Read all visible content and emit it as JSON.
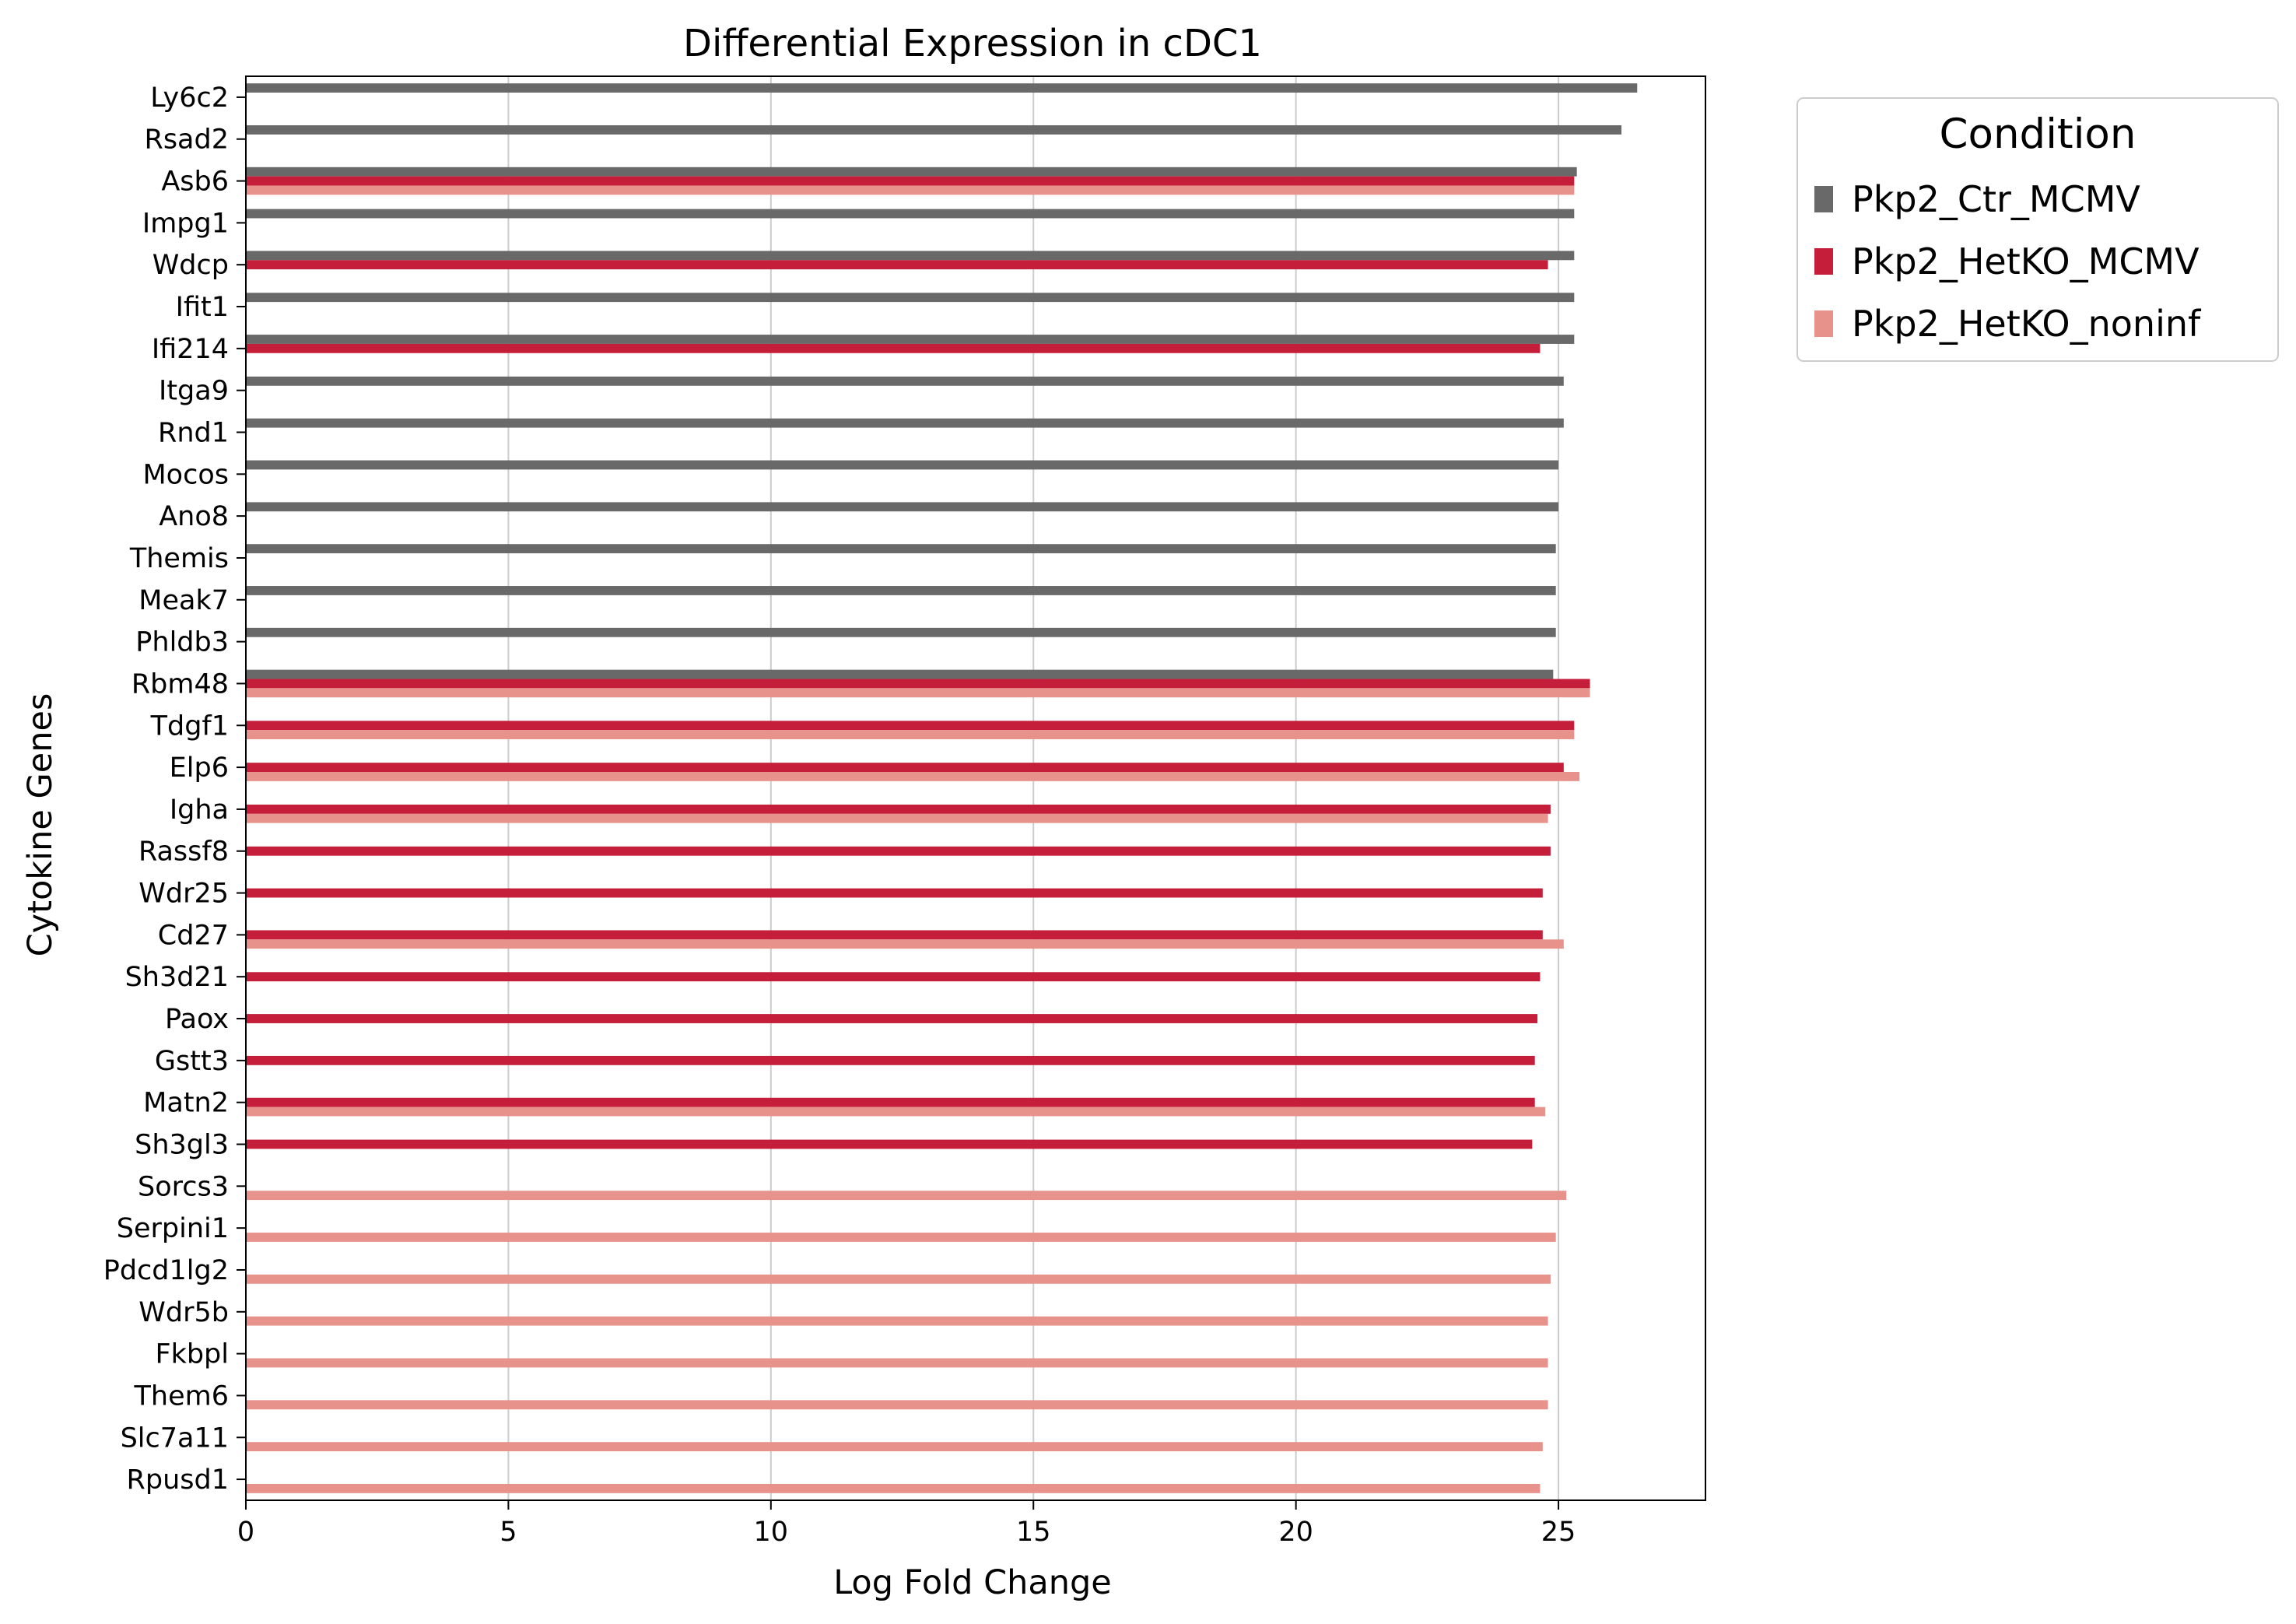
{
  "chart_data": {
    "type": "bar",
    "orientation": "horizontal",
    "title": "Differential Expression in cDC1",
    "xlabel": "Log Fold Change",
    "ylabel": "Cytokine Genes",
    "xlim": [
      0,
      27.8
    ],
    "xticks": [
      0,
      5,
      10,
      15,
      20,
      25
    ],
    "grid": "vertical",
    "legend": {
      "title": "Condition",
      "placement": "outside-top-right"
    },
    "categories": [
      "Ly6c2",
      "Rsad2",
      "Asb6",
      "Impg1",
      "Wdcp",
      "Ifit1",
      "Ifi214",
      "Itga9",
      "Rnd1",
      "Mocos",
      "Ano8",
      "Themis",
      "Meak7",
      "Phldb3",
      "Rbm48",
      "Tdgf1",
      "Elp6",
      "Igha",
      "Rassf8",
      "Wdr25",
      "Cd27",
      "Sh3d21",
      "Paox",
      "Gstt3",
      "Matn2",
      "Sh3gl3",
      "Sorcs3",
      "Serpini1",
      "Pdcd1lg2",
      "Wdr5b",
      "Fkbpl",
      "Them6",
      "Slc7a11",
      "Rpusd1"
    ],
    "series": [
      {
        "name": "Pkp2_Ctr_MCMV",
        "color": "#696969",
        "values": [
          26.5,
          26.2,
          25.35,
          25.3,
          25.3,
          25.3,
          25.3,
          25.1,
          25.1,
          25.0,
          25.0,
          24.95,
          24.95,
          24.95,
          24.9,
          null,
          null,
          null,
          null,
          null,
          null,
          null,
          null,
          null,
          null,
          null,
          null,
          null,
          null,
          null,
          null,
          null,
          null,
          null
        ]
      },
      {
        "name": "Pkp2_HetKO_MCMV",
        "color": "#c41e3a",
        "values": [
          null,
          null,
          25.3,
          null,
          24.8,
          null,
          24.65,
          null,
          null,
          null,
          null,
          null,
          null,
          null,
          25.6,
          25.3,
          25.1,
          24.85,
          24.85,
          24.7,
          24.7,
          24.65,
          24.6,
          24.55,
          24.55,
          24.5,
          null,
          null,
          null,
          null,
          null,
          null,
          null,
          null
        ]
      },
      {
        "name": "Pkp2_HetKO_noninf",
        "color": "#e8928c",
        "values": [
          null,
          null,
          25.3,
          null,
          null,
          null,
          null,
          null,
          null,
          null,
          null,
          null,
          null,
          null,
          25.6,
          25.3,
          25.4,
          24.8,
          null,
          null,
          25.1,
          null,
          null,
          null,
          24.75,
          null,
          25.15,
          24.95,
          24.85,
          24.8,
          24.8,
          24.8,
          24.7,
          24.65
        ]
      }
    ]
  }
}
